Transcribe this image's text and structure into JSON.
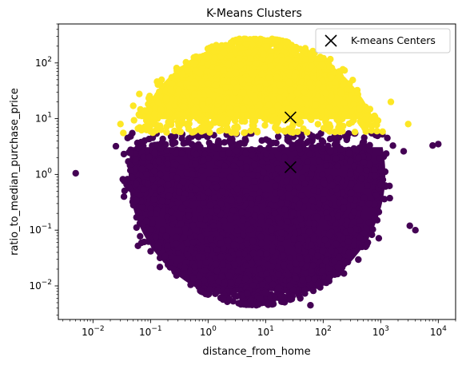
{
  "chart_data": {
    "type": "scatter",
    "title": "K-Means Clusters",
    "xlabel": "distance_from_home",
    "ylabel": "ratio_to_median_purchase_price",
    "xscale": "log",
    "yscale": "log",
    "xlim": [
      0.0025,
      20000
    ],
    "ylim": [
      0.0025,
      500
    ],
    "xtick_labels": [
      {
        "base": "10",
        "exp": "−2",
        "value": 0.01
      },
      {
        "base": "10",
        "exp": "−1",
        "value": 0.1
      },
      {
        "base": "10",
        "exp": "0",
        "value": 1
      },
      {
        "base": "10",
        "exp": "1",
        "value": 10
      },
      {
        "base": "10",
        "exp": "2",
        "value": 100
      },
      {
        "base": "10",
        "exp": "3",
        "value": 1000
      },
      {
        "base": "10",
        "exp": "4",
        "value": 10000
      }
    ],
    "ytick_labels": [
      {
        "base": "10",
        "exp": "−2",
        "value": 0.01
      },
      {
        "base": "10",
        "exp": "−1",
        "value": 0.1
      },
      {
        "base": "10",
        "exp": "0",
        "value": 1
      },
      {
        "base": "10",
        "exp": "1",
        "value": 10
      },
      {
        "base": "10",
        "exp": "2",
        "value": 100
      }
    ],
    "grid": false,
    "legend": {
      "placement": "top-right",
      "entries": [
        "K-means Centers"
      ]
    },
    "clusters": [
      {
        "color": "#440154",
        "y_range": [
          0.0045,
          5.5
        ],
        "outliers": [
          [
            0.005,
            1.05
          ],
          [
            0.025,
            3.2
          ],
          [
            0.04,
            4.5
          ],
          [
            1,
            0.007
          ],
          [
            5.5,
            0.0055
          ],
          [
            8,
            0.006
          ],
          [
            40,
            0.006
          ],
          [
            60,
            0.0045
          ],
          [
            2500,
            2.6
          ],
          [
            3200,
            0.12
          ],
          [
            4000,
            0.1
          ],
          [
            10000,
            3.5
          ],
          [
            8000,
            3.3
          ]
        ]
      },
      {
        "color": "#fde725",
        "y_range": [
          5.5,
          270
        ],
        "outliers": [
          [
            3.5,
            270
          ],
          [
            13,
            270
          ],
          [
            0.05,
            17
          ],
          [
            0.08,
            14
          ],
          [
            0.03,
            8
          ],
          [
            3000,
            8
          ],
          [
            1500,
            20
          ]
        ]
      }
    ],
    "centers": {
      "name": "K-means Centers",
      "marker": "x",
      "color": "#000000",
      "points": [
        {
          "x": 27,
          "y": 10.5
        },
        {
          "x": 27,
          "y": 1.35
        }
      ]
    }
  }
}
